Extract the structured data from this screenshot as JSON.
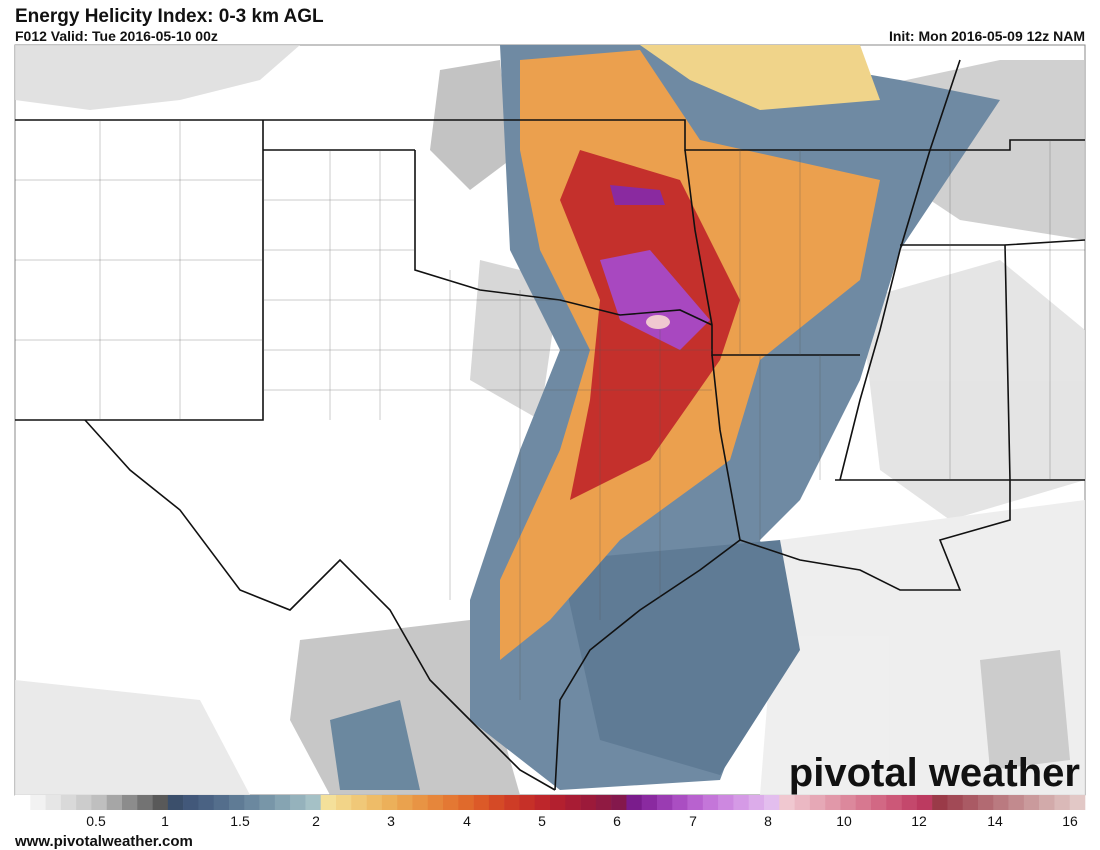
{
  "header": {
    "title": "Energy Helicity Index: 0-3 km AGL",
    "valid": "F012 Valid: Tue 2016-05-10 00z",
    "init": "Init: Mon 2016-05-09 12z NAM"
  },
  "watermark": "pivotal weather",
  "footer": "www.pivotalweather.com",
  "colorbar": {
    "ticks": [
      0.5,
      1,
      1.5,
      2,
      3,
      4,
      5,
      6,
      7,
      8,
      10,
      12,
      14,
      16
    ],
    "colors": [
      "#ffffff",
      "#f2f2f2",
      "#e6e6e6",
      "#d9d9d9",
      "#cccccc",
      "#bfbfbf",
      "#a6a6a6",
      "#8c8c8c",
      "#737373",
      "#595959",
      "#3b4f6b",
      "#42587a",
      "#4a6283",
      "#546e8c",
      "#5f7b95",
      "#6b889f",
      "#7896a8",
      "#86a4b2",
      "#95b2bc",
      "#a5c1c6",
      "#f4e09a",
      "#f2d488",
      "#f0c878",
      "#eebc68",
      "#ecb05a",
      "#eaa24e",
      "#e89444",
      "#e6863b",
      "#e47833",
      "#e06a2c",
      "#dc5a28",
      "#d54a26",
      "#ce3c26",
      "#c63028",
      "#be262b",
      "#b3202f",
      "#a81c34",
      "#9c1a3a",
      "#901a42",
      "#84184c",
      "#7a1c8c",
      "#8a2aa0",
      "#9a3cb2",
      "#aa4ec2",
      "#b862cf",
      "#c476d9",
      "#cd88e0",
      "#d59ae6",
      "#dcacea",
      "#e3beee",
      "#f0c8d0",
      "#ebb8c3",
      "#e6a8b6",
      "#e198a9",
      "#dc889c",
      "#d77890",
      "#d26884",
      "#cc5878",
      "#c4486c",
      "#bc3a60",
      "#9a3a48",
      "#a24a56",
      "#aa5a64",
      "#b26a72",
      "#ba7a80",
      "#c28a8e",
      "#ca9a9c",
      "#d2aaaa",
      "#dab9b8",
      "#e2c8c6"
    ]
  }
}
